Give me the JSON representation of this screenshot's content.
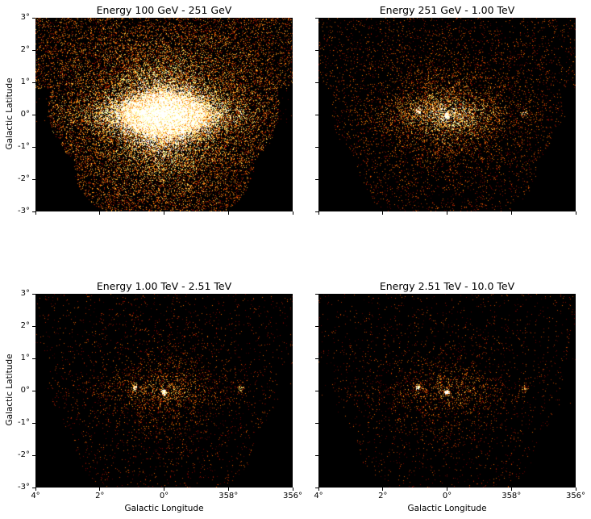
{
  "chart_data": [
    {
      "type": "heatmap",
      "title": "Energy 100 GeV - 251 GeV",
      "xlabel": "",
      "ylabel": "Galactic Latitude",
      "xticks": [
        "4°",
        "2°",
        "0°",
        "358°",
        "356°"
      ],
      "yticks": [
        "3°",
        "2°",
        "1°",
        "0°",
        "-1°",
        "-2°",
        "-3°"
      ],
      "xlim": [
        4,
        -4
      ],
      "ylim": [
        -3,
        3
      ],
      "colormap": "afmhot",
      "brightness": 1.0,
      "source_intensity": 0.4,
      "source_l": 0.0,
      "source_b": -0.05
    },
    {
      "type": "heatmap",
      "title": "Energy 251 GeV - 1.00 TeV",
      "xlabel": "",
      "ylabel": "",
      "xticks": [
        "4°",
        "2°",
        "0°",
        "358°",
        "356°"
      ],
      "yticks": [
        "3°",
        "2°",
        "1°",
        "0°",
        "-1°",
        "-2°",
        "-3°"
      ],
      "xlim": [
        4,
        -4
      ],
      "ylim": [
        -3,
        3
      ],
      "colormap": "afmhot",
      "brightness": 0.32,
      "source_intensity": 1.0,
      "source_l": 0.0,
      "source_b": -0.05
    },
    {
      "type": "heatmap",
      "title": "Energy 1.00 TeV - 2.51 TeV",
      "xlabel": "Galactic Longitude",
      "ylabel": "Galactic Latitude",
      "xticks": [
        "4°",
        "2°",
        "0°",
        "358°",
        "356°"
      ],
      "yticks": [
        "3°",
        "2°",
        "1°",
        "0°",
        "-1°",
        "-2°",
        "-3°"
      ],
      "xlim": [
        4,
        -4
      ],
      "ylim": [
        -3,
        3
      ],
      "colormap": "afmhot",
      "brightness": 0.16,
      "source_intensity": 1.0,
      "source_l": 0.0,
      "source_b": -0.05
    },
    {
      "type": "heatmap",
      "title": "Energy 2.51 TeV - 10.0 TeV",
      "xlabel": "Galactic Longitude",
      "ylabel": "",
      "xticks": [
        "4°",
        "2°",
        "0°",
        "358°",
        "356°"
      ],
      "yticks": [
        "3°",
        "2°",
        "1°",
        "0°",
        "-1°",
        "-2°",
        "-3°"
      ],
      "xlim": [
        4,
        -4
      ],
      "ylim": [
        -3,
        3
      ],
      "colormap": "afmhot",
      "brightness": 0.13,
      "source_intensity": 1.0,
      "source_l": 0.0,
      "source_b": -0.05
    }
  ]
}
